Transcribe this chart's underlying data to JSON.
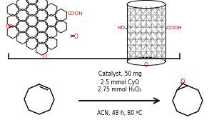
{
  "bg_color": "#ffffff",
  "text_above_arrow": [
    "Catalyst, 50 mg",
    "2.5 mmol CyO",
    "2.75 mmol H₂O₂"
  ],
  "text_below_arrow": "ACN, 48 h, 80 ºC",
  "black": "#000000",
  "red": "#ff0000",
  "arrow_color": "#1a1a1a",
  "figsize": [
    3.0,
    1.89
  ],
  "dpi": 100
}
